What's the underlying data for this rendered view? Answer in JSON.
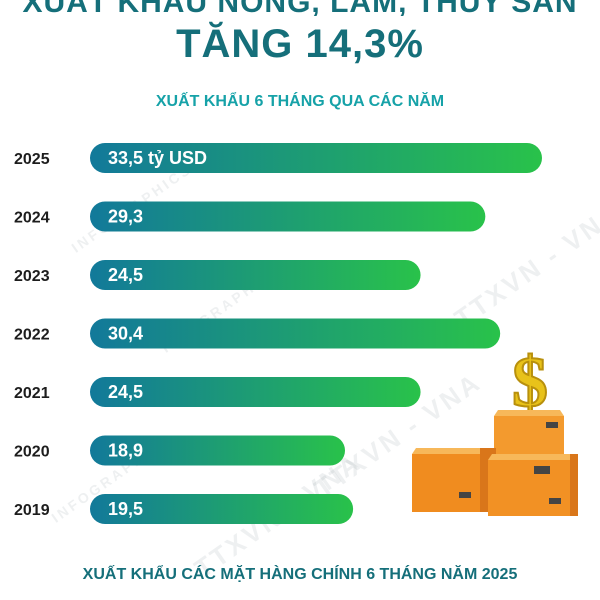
{
  "header": {
    "top_title": "XUẤT KHẨU NÔNG, LÂM, THỦY SẢN",
    "headline": "TĂNG 14,3%",
    "subtitle": "XUẤT KHẨU 6 THÁNG QUA CÁC NĂM"
  },
  "footer": {
    "text": "XUẤT KHẨU CÁC MẶT HÀNG CHÍNH 6 THÁNG NĂM 2025"
  },
  "watermarks": [
    "TTXVN - VNA",
    "INFOGRAPHICS",
    "TTXVN - VNA",
    "INFOGRAPHICS",
    "TTXVN - VNA",
    "INFOGRAPHICS"
  ],
  "colors": {
    "bar_start": "#12799a",
    "bar_end": "#29c24a",
    "title": "#156f7a",
    "subtitle": "#16a2a8"
  },
  "chart_data": {
    "type": "bar",
    "orientation": "horizontal",
    "categories": [
      "2025",
      "2024",
      "2023",
      "2022",
      "2021",
      "2020",
      "2019"
    ],
    "values": [
      33.5,
      29.3,
      24.5,
      30.4,
      24.5,
      18.9,
      19.5
    ],
    "value_labels": [
      "33,5 tỷ USD",
      "29,3",
      "24,5",
      "30,4",
      "24,5",
      "18,9",
      "19,5"
    ],
    "title": "XUẤT KHẨU 6 THÁNG QUA CÁC NĂM",
    "xlabel": "",
    "ylabel": "",
    "xlim": [
      0,
      33.5
    ]
  },
  "decoration": {
    "icons": [
      "dollar-sign-icon",
      "cardboard-boxes-icon"
    ]
  }
}
